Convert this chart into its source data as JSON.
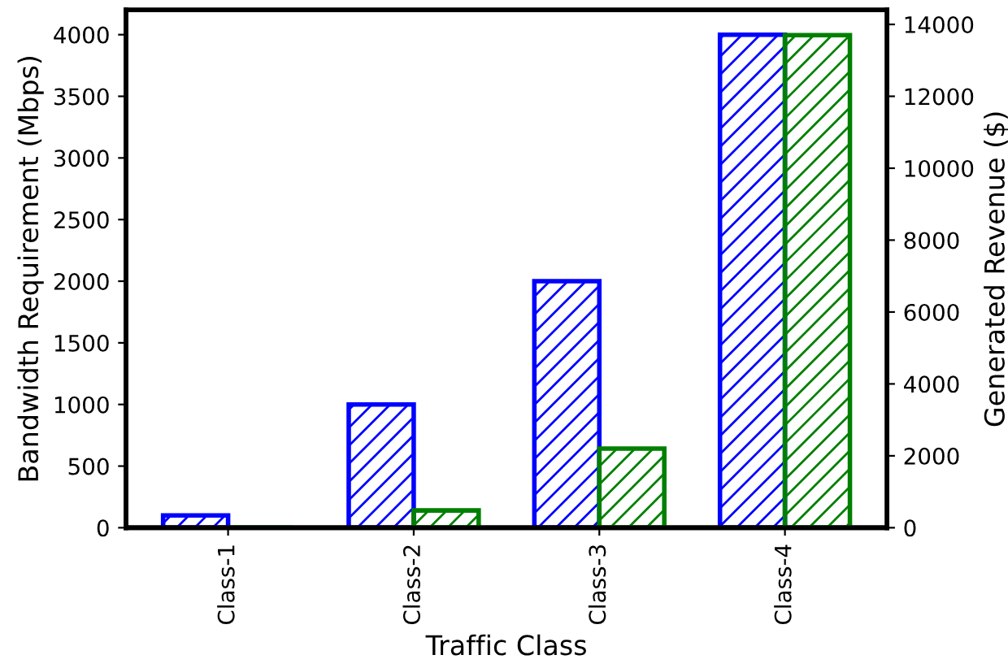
{
  "chart_data": {
    "type": "bar",
    "xlabel": "Traffic Class",
    "ylabel": "Bandwidth Requirement (Mbps)",
    "y2label": "Generated Revenue ($)",
    "categories": [
      "Class-1",
      "Class-2",
      "Class-3",
      "Class-4"
    ],
    "series": [
      {
        "color": "#0000ff",
        "values": [
          100,
          1000,
          2000,
          4000
        ]
      },
      {
        "color": "#008000",
        "values": [
          0,
          480,
          2200,
          13700
        ],
        "axis": "y2"
      }
    ],
    "ylim": [
      0,
      4200
    ],
    "yticks": [
      0,
      500,
      1000,
      1500,
      2000,
      2500,
      3000,
      3500,
      4000
    ],
    "y2lim": [
      0,
      14400
    ],
    "y2ticks": [
      0,
      2000,
      4000,
      6000,
      8000,
      10000,
      12000,
      14000
    ],
    "grid": false,
    "legend": false
  }
}
